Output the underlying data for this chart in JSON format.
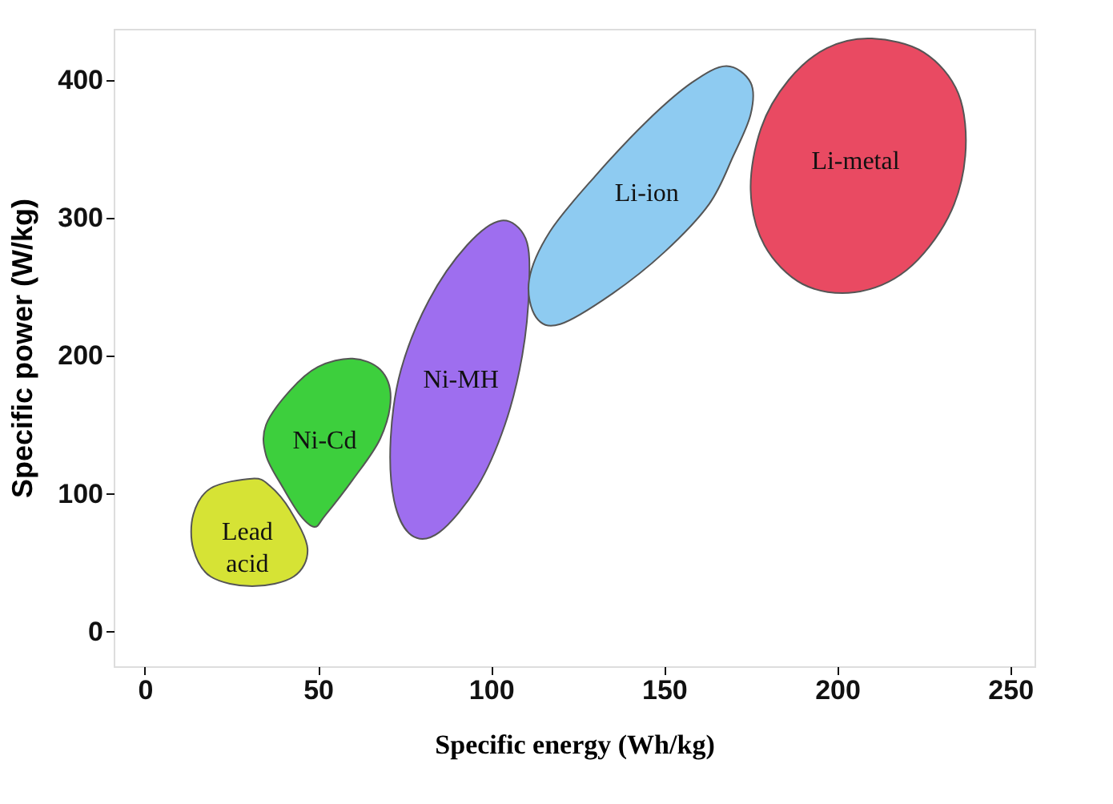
{
  "chart_data": {
    "type": "area",
    "xlabel": "Specific energy (Wh/kg)",
    "ylabel": "Specific power (W/kg)",
    "xlim": [
      -9,
      257
    ],
    "ylim": [
      -25,
      437
    ],
    "xticks": [
      0,
      50,
      100,
      150,
      200,
      250
    ],
    "yticks": [
      0,
      100,
      200,
      300,
      400
    ],
    "grid": false,
    "marker": "none",
    "series": [
      {
        "name": "Lead acid",
        "color": "#d4e22a",
        "x": [
          31,
          36,
          42,
          47,
          43,
          31,
          19,
          14,
          14,
          19
        ],
        "values": [
          111,
          106,
          88,
          60,
          40,
          33,
          40,
          60,
          85,
          104
        ]
      },
      {
        "name": "Ni-Cd",
        "color": "#33cc33",
        "x": [
          60,
          68,
          71,
          68,
          60,
          52,
          49,
          45,
          40,
          35,
          35,
          42,
          50
        ],
        "values": [
          198,
          190,
          170,
          140,
          110,
          84,
          76,
          84,
          104,
          128,
          150,
          175,
          192
        ]
      },
      {
        "name": "Ni-MH",
        "color": "#9966ee",
        "x": [
          103,
          110,
          111,
          109,
          104,
          96,
          85,
          77,
          72,
          71,
          74,
          82,
          93
        ],
        "values": [
          298,
          285,
          250,
          200,
          150,
          105,
          72,
          70,
          95,
          140,
          190,
          240,
          280
        ]
      },
      {
        "name": "Li-ion",
        "color": "#88c8f0",
        "x": [
          168,
          175,
          175,
          170,
          163,
          150,
          135,
          120,
          113,
          111,
          117,
          130,
          145,
          158
        ],
        "values": [
          410,
          398,
          375,
          345,
          310,
          275,
          245,
          223,
          228,
          255,
          290,
          330,
          370,
          398
        ]
      },
      {
        "name": "Li-metal",
        "color": "#e8405a",
        "x": [
          210,
          225,
          235,
          237,
          232,
          220,
          205,
          190,
          179,
          175,
          178,
          186,
          197
        ],
        "values": [
          430,
          420,
          390,
          345,
          300,
          262,
          246,
          252,
          280,
          320,
          365,
          400,
          423
        ]
      }
    ]
  }
}
